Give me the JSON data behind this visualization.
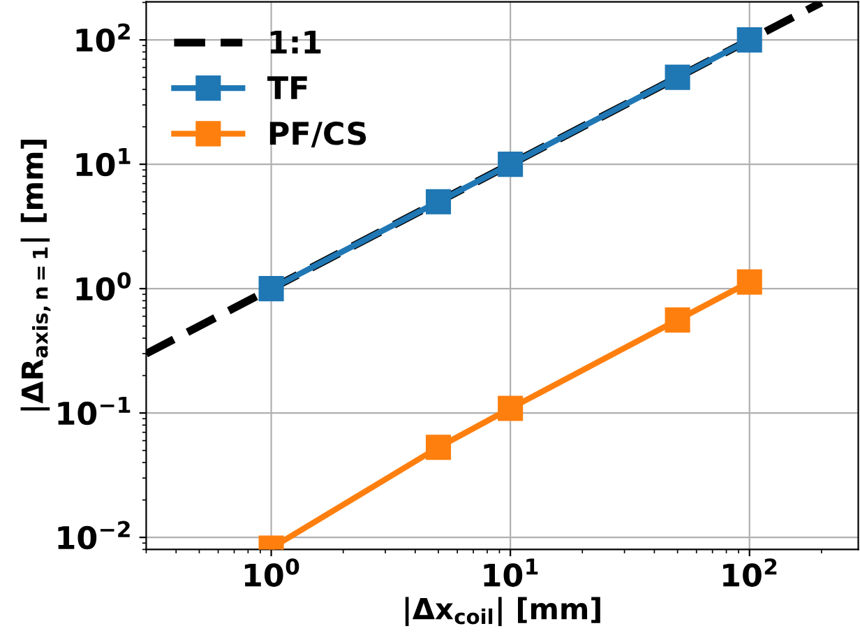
{
  "chart_data": {
    "type": "line",
    "xlabel": "|Δx$_{coil}$| [mm]",
    "ylabel": "|ΔR$_{axis,n=1}$| [mm]",
    "log": "xy",
    "grid": true,
    "legend": "top left",
    "marker": "square",
    "xlim": [
      0.3,
      285
    ],
    "ylim": [
      0.008,
      202
    ],
    "xticks": [
      {
        "value": 1,
        "label": "10$^{0}$"
      },
      {
        "value": 10,
        "label": "10$^{1}$"
      },
      {
        "value": 100,
        "label": "10$^{2}$"
      }
    ],
    "yticks": [
      {
        "value": 0.01,
        "label": "10$^{−2}$"
      },
      {
        "value": 0.1,
        "label": "10$^{−1}$"
      },
      {
        "value": 1,
        "label": "10$^{0}$"
      },
      {
        "value": 10,
        "label": "10$^{1}$"
      },
      {
        "value": 100,
        "label": "10$^{2}$"
      }
    ],
    "series": [
      {
        "name": "1:1",
        "color": "#000000",
        "x": [
          0.3,
          200
        ],
        "values": [
          0.3,
          200
        ],
        "line_style": "dashed",
        "marker": "none"
      },
      {
        "name": "TF",
        "color": "#1f77b4",
        "x": [
          1,
          5,
          10,
          50,
          100
        ],
        "values": [
          1,
          5,
          10,
          50,
          100
        ]
      },
      {
        "name": "PF/CS",
        "color": "#ff7f0e",
        "x": [
          1,
          5,
          10,
          50,
          100
        ],
        "values": [
          0.0082,
          0.053,
          0.109,
          0.56,
          1.13
        ]
      }
    ]
  }
}
